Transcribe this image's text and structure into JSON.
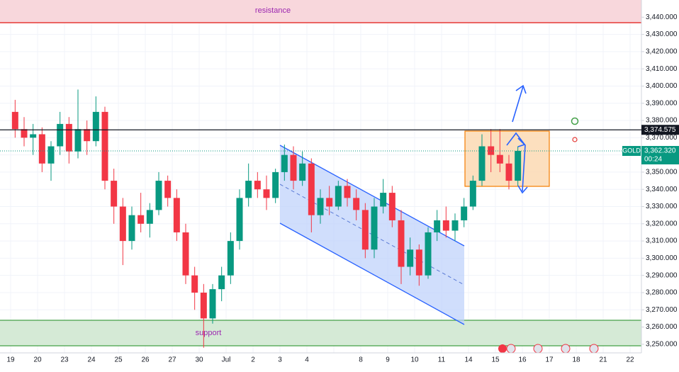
{
  "chart_data": {
    "type": "candlestick",
    "symbol": "GOLD",
    "annotations": [
      "resistance",
      "support"
    ],
    "level": {
      "value": 3374.575,
      "label": "3,374.575"
    },
    "last_price": {
      "value": 3362.32,
      "label": "3,362.320"
    },
    "countdown": "00:24",
    "categories": [
      "19",
      "20",
      "23",
      "24",
      "25",
      "26",
      "27",
      "30",
      "Jul",
      "2",
      "3",
      "4",
      null,
      "8",
      "9",
      "10",
      "11",
      "14",
      "15",
      "16",
      "17",
      "18",
      "21",
      "22"
    ],
    "up_color": "#089981",
    "down_color": "#f23645",
    "grid": true,
    "ylim": [
      3245,
      3450
    ],
    "yticks": [
      {
        "value": 3250,
        "label": "3,250.000"
      },
      {
        "value": 3260,
        "label": "3,260.000"
      },
      {
        "value": 3270,
        "label": "3,270.000"
      },
      {
        "value": 3280,
        "label": "3,280.000"
      },
      {
        "value": 3290,
        "label": "3,290.000"
      },
      {
        "value": 3300,
        "label": "3,300.000"
      },
      {
        "value": 3310,
        "label": "3,310.000"
      },
      {
        "value": 3320,
        "label": "3,320.000"
      },
      {
        "value": 3330,
        "label": "3,330.000"
      },
      {
        "value": 3340,
        "label": "3,340.000"
      },
      {
        "value": 3350,
        "label": "3,350.000"
      },
      {
        "value": 3360,
        "label": "3,360.000"
      },
      {
        "value": 3370,
        "label": "3,370.000"
      },
      {
        "value": 3380,
        "label": "3,380.000"
      },
      {
        "value": 3390,
        "label": "3,390.000"
      },
      {
        "value": 3400,
        "label": "3,400.000"
      },
      {
        "value": 3410,
        "label": "3,410.000"
      },
      {
        "value": 3420,
        "label": "3,420.000"
      },
      {
        "value": 3430,
        "label": "3,430.000"
      },
      {
        "value": 3440,
        "label": "3,440.000"
      }
    ],
    "open": [
      3385,
      3375,
      3370,
      3372,
      3355,
      3365,
      3378,
      3362,
      3375,
      3368,
      3385,
      3345,
      3330,
      3310,
      3325,
      3320,
      3328,
      3345,
      3335,
      3315,
      3290,
      3280,
      3265,
      3282,
      3290,
      3310,
      3335,
      3345,
      3340,
      3335,
      3350,
      3360,
      3345,
      3355,
      3325,
      3335,
      3330,
      3342,
      3335,
      3328,
      3305,
      3330,
      3338,
      3322,
      3295,
      3305,
      3290,
      3315,
      3322,
      3316,
      3322,
      3330,
      3345,
      3365,
      3360,
      3355,
      3345
    ],
    "high": [
      3392,
      3382,
      3378,
      3376,
      3368,
      3385,
      3382,
      3398,
      3380,
      3394,
      3388,
      3352,
      3335,
      3330,
      3338,
      3332,
      3350,
      3348,
      3340,
      3320,
      3295,
      3285,
      3285,
      3295,
      3315,
      3340,
      3355,
      3350,
      3348,
      3352,
      3366,
      3365,
      3362,
      3358,
      3340,
      3342,
      3345,
      3346,
      3340,
      3332,
      3335,
      3346,
      3342,
      3328,
      3312,
      3308,
      3318,
      3328,
      3330,
      3326,
      3335,
      3348,
      3372,
      3375,
      3375,
      3360,
      3365
    ],
    "low": [
      3370,
      3365,
      3360,
      3350,
      3345,
      3360,
      3355,
      3358,
      3360,
      3365,
      3340,
      3320,
      3296,
      3305,
      3315,
      3312,
      3325,
      3330,
      3310,
      3285,
      3270,
      3248,
      3262,
      3275,
      3285,
      3305,
      3330,
      3335,
      3328,
      3332,
      3345,
      3340,
      3342,
      3315,
      3320,
      3325,
      3328,
      3330,
      3322,
      3300,
      3300,
      3326,
      3318,
      3285,
      3290,
      3284,
      3288,
      3310,
      3312,
      3310,
      3318,
      3328,
      3342,
      3350,
      3350,
      3340,
      3342
    ],
    "close": [
      3375,
      3370,
      3372,
      3355,
      3365,
      3378,
      3362,
      3375,
      3368,
      3385,
      3345,
      3330,
      3310,
      3325,
      3320,
      3328,
      3345,
      3335,
      3315,
      3290,
      3280,
      3265,
      3282,
      3290,
      3310,
      3335,
      3345,
      3340,
      3335,
      3350,
      3360,
      3345,
      3355,
      3325,
      3335,
      3330,
      3342,
      3335,
      3328,
      3305,
      3330,
      3338,
      3322,
      3295,
      3305,
      3290,
      3315,
      3322,
      3316,
      3322,
      3330,
      3345,
      3365,
      3360,
      3355,
      3345,
      3362.32
    ]
  }
}
